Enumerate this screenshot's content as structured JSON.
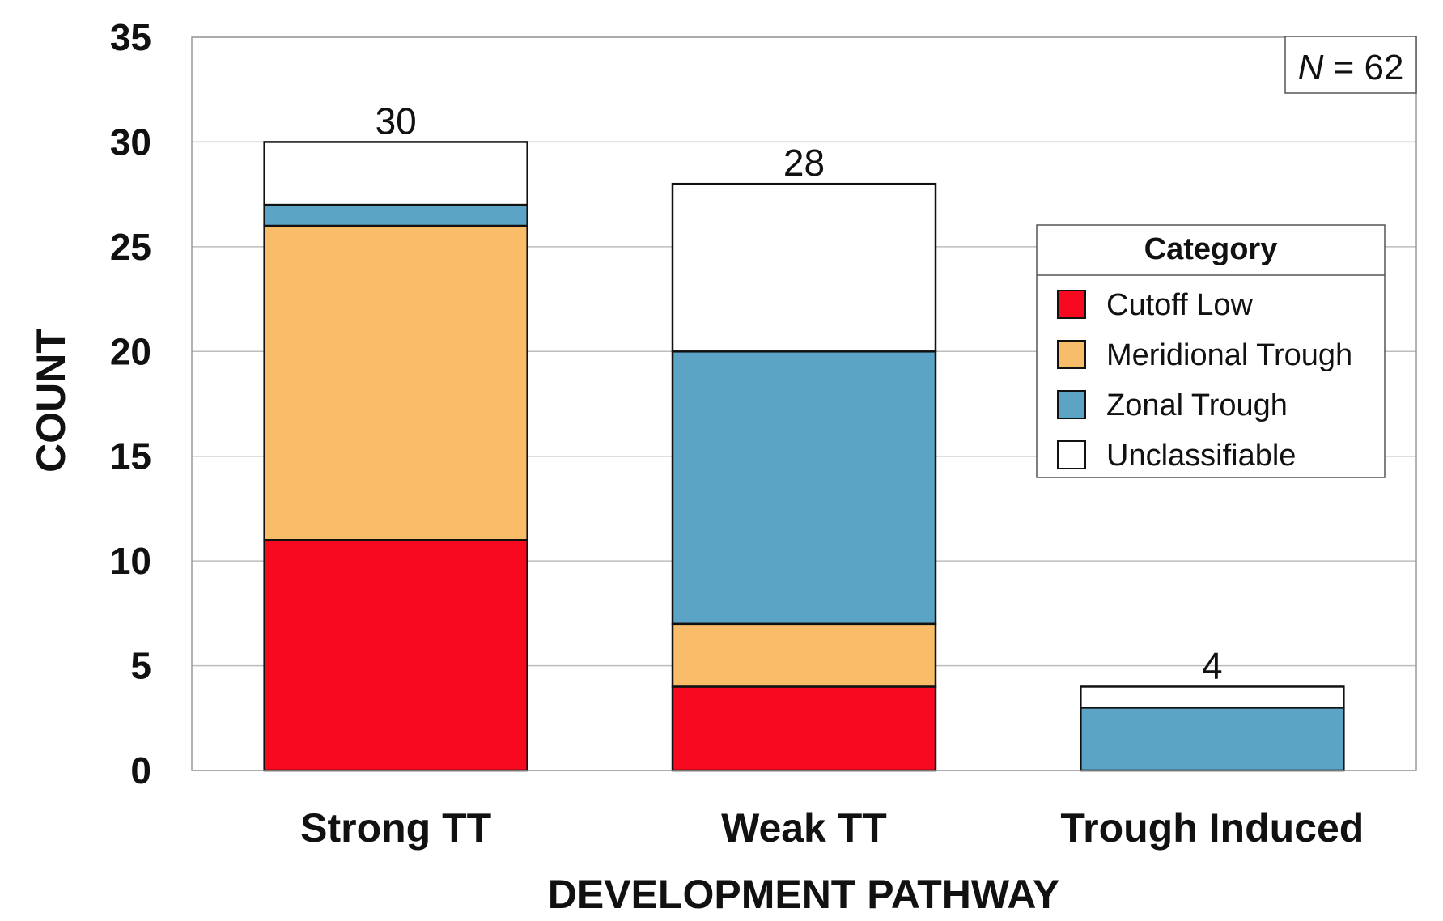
{
  "chart_data": {
    "type": "bar",
    "stacked": true,
    "xlabel": "DEVELOPMENT PATHWAY",
    "ylabel": "COUNT",
    "ylim": [
      0,
      35
    ],
    "yticks": [
      0,
      5,
      10,
      15,
      20,
      25,
      30,
      35
    ],
    "grid": true,
    "categories": [
      "Strong TT",
      "Weak TT",
      "Trough Induced"
    ],
    "series": [
      {
        "name": "Cutoff Low",
        "color": "#f70a1f",
        "values": [
          11,
          4,
          0
        ]
      },
      {
        "name": "Meridional Trough",
        "color": "#f9bd69",
        "values": [
          15,
          3,
          0
        ]
      },
      {
        "name": "Zonal Trough",
        "color": "#5ba4c6",
        "values": [
          1,
          13,
          3
        ]
      },
      {
        "name": "Unclassifiable",
        "color": "#ffffff",
        "values": [
          3,
          8,
          1
        ]
      }
    ],
    "totals": [
      30,
      28,
      4
    ],
    "total_labels": [
      "30",
      "28",
      "4"
    ],
    "legend": {
      "title": "Category",
      "position": "right"
    },
    "annotation": {
      "italic_part": "N",
      "rest": " = 62"
    }
  }
}
